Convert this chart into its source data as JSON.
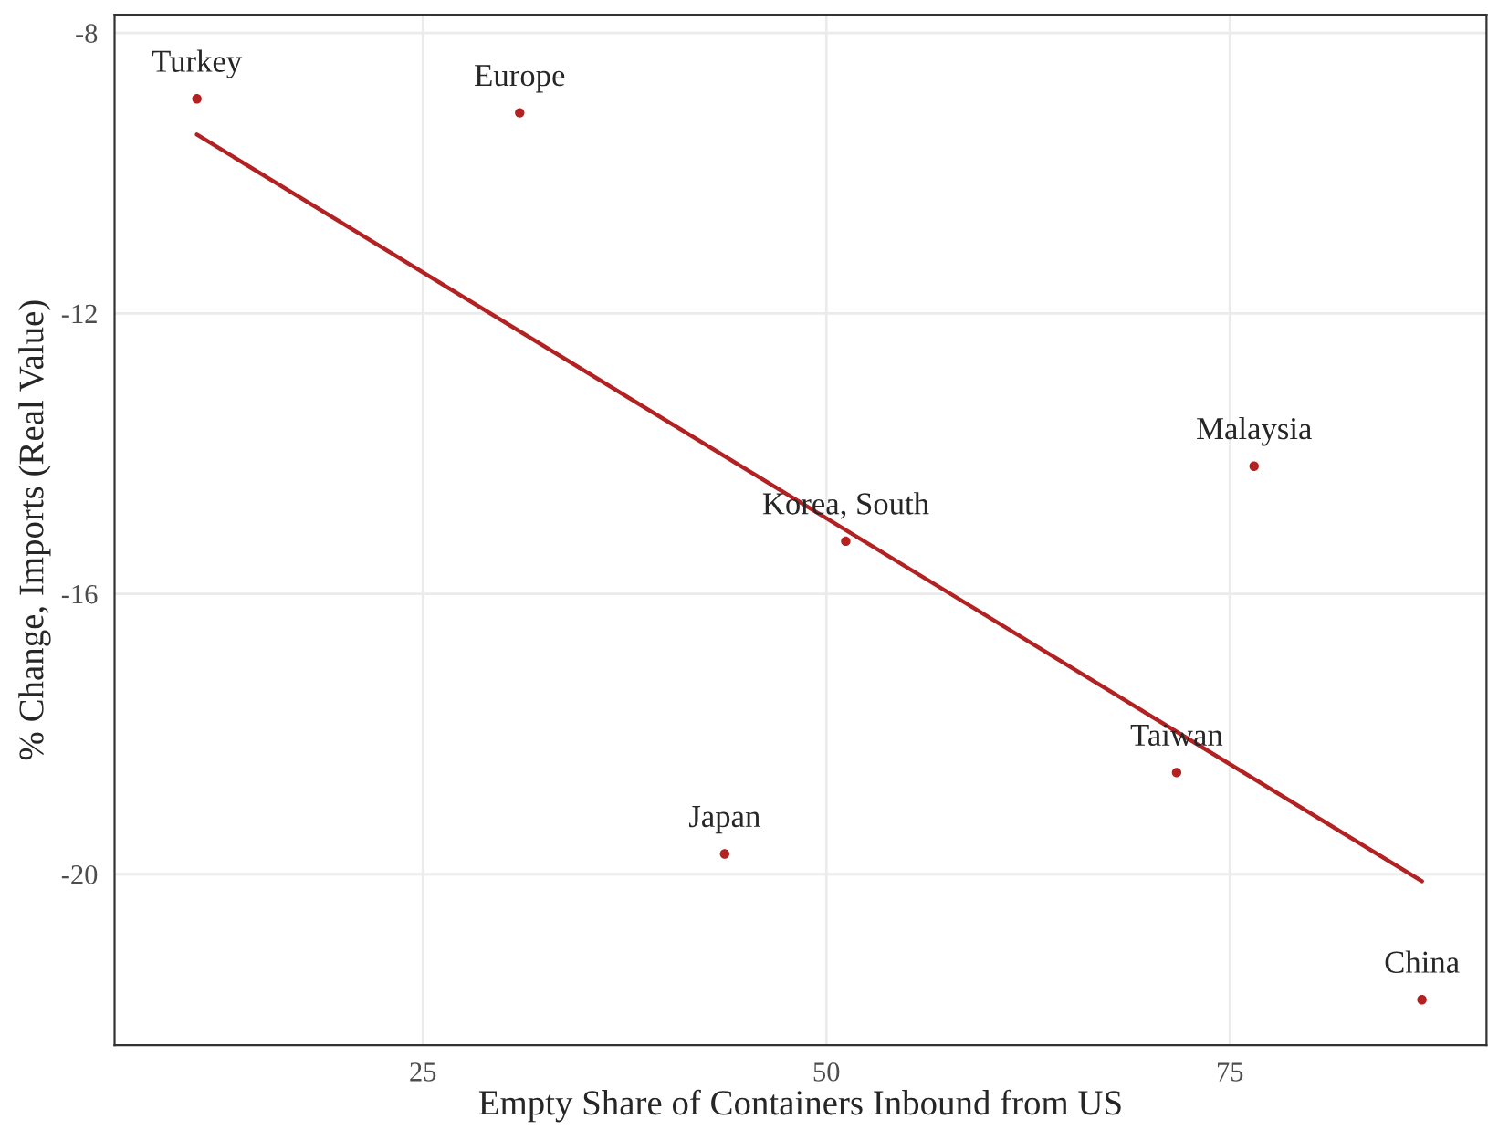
{
  "chart_data": {
    "type": "scatter",
    "xlabel": "Empty Share of Containers Inbound from US",
    "ylabel": "% Change, Imports (Real Value)",
    "series": [
      {
        "marker": "circle",
        "color": "#b22222",
        "x": [
          11.0,
          31.0,
          51.2,
          76.5,
          43.7,
          71.7,
          86.9
        ],
        "values": [
          -8.94,
          -9.14,
          -15.25,
          -14.18,
          -19.71,
          -18.55,
          -21.79
        ]
      },
      {
        "type": "line",
        "marker": "none",
        "color": "#b22222",
        "x": [
          11.0,
          86.9
        ],
        "values": [
          -9.45,
          -20.1
        ]
      }
    ],
    "annotations": [
      {
        "text": "Turkey",
        "x": 11.0,
        "y": -8.94
      },
      {
        "text": "Europe",
        "x": 31.0,
        "y": -9.14
      },
      {
        "text": "Korea, South",
        "x": 51.2,
        "y": -15.25
      },
      {
        "text": "Malaysia",
        "x": 76.5,
        "y": -14.18
      },
      {
        "text": "Japan",
        "x": 43.7,
        "y": -19.71
      },
      {
        "text": "Taiwan",
        "x": 71.7,
        "y": -18.55
      },
      {
        "text": "China",
        "x": 86.9,
        "y": -21.79
      }
    ],
    "xlim": [
      5.9,
      90.9
    ],
    "ylim": [
      -22.44,
      -7.74
    ],
    "xticks": [
      25,
      50,
      75
    ],
    "yticks": [
      -8,
      -12,
      -16,
      -20
    ],
    "grid": true,
    "line_style": "solid"
  }
}
